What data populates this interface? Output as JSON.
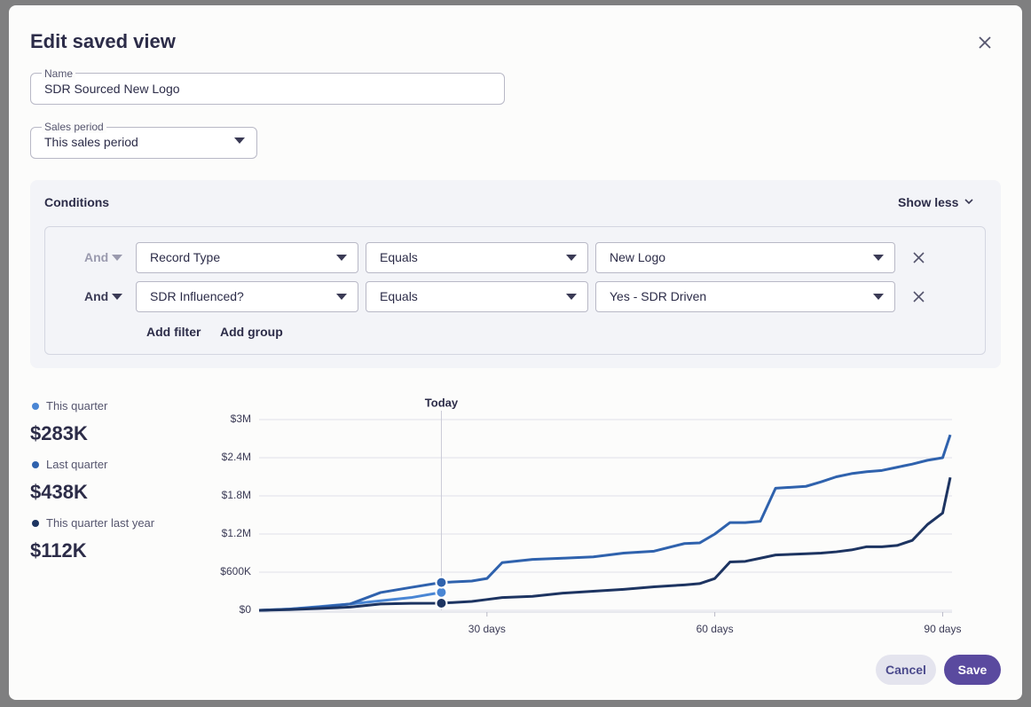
{
  "modal": {
    "title": "Edit saved view",
    "name_field": {
      "label": "Name",
      "value": "SDR Sourced New Logo"
    },
    "period_field": {
      "label": "Sales period",
      "value": "This sales period"
    },
    "conditions": {
      "title": "Conditions",
      "toggle": "Show less",
      "rows": [
        {
          "conjunction": "And",
          "field": "Record Type",
          "operator": "Equals",
          "value": "New Logo"
        },
        {
          "conjunction": "And",
          "field": "SDR Influenced?",
          "operator": "Equals",
          "value": "Yes - SDR Driven"
        }
      ],
      "add_filter": "Add filter",
      "add_group": "Add group"
    },
    "cancel": "Cancel",
    "save": "Save"
  },
  "chart_data": {
    "type": "line",
    "today": {
      "x": 24,
      "label": "Today"
    },
    "x": [
      0,
      4,
      8,
      12,
      16,
      20,
      24,
      28,
      30,
      32,
      36,
      40,
      44,
      48,
      52,
      56,
      58,
      60,
      62,
      64,
      66,
      68,
      72,
      74,
      76,
      78,
      80,
      82,
      84,
      86,
      88,
      90,
      91
    ],
    "xlim": [
      0,
      91
    ],
    "xticks": [
      {
        "value": 30,
        "label": "30 days"
      },
      {
        "value": 60,
        "label": "60 days"
      },
      {
        "value": 90,
        "label": "90 days"
      }
    ],
    "ylim": [
      0,
      3000000
    ],
    "yticks": [
      {
        "value": 0,
        "label": "$0"
      },
      {
        "value": 600000,
        "label": "$600K"
      },
      {
        "value": 1200000,
        "label": "$1.2M"
      },
      {
        "value": 1800000,
        "label": "$1.8M"
      },
      {
        "value": 2400000,
        "label": "$2.4M"
      },
      {
        "value": 3000000,
        "label": "$3M"
      }
    ],
    "grid": true,
    "series": [
      {
        "name": "This quarter",
        "total": "$283K",
        "color": "#4a86d4",
        "values": [
          0,
          20000,
          60000,
          100000,
          150000,
          200000,
          283000,
          null,
          null,
          null,
          null,
          null,
          null,
          null,
          null,
          null,
          null,
          null,
          null,
          null,
          null,
          null,
          null,
          null,
          null,
          null,
          null,
          null,
          null,
          null,
          null,
          null,
          null
        ]
      },
      {
        "name": "Last quarter",
        "total": "$438K",
        "color": "#2f62ad",
        "values": [
          0,
          20000,
          50000,
          100000,
          280000,
          360000,
          438000,
          460000,
          500000,
          750000,
          800000,
          820000,
          840000,
          900000,
          930000,
          1050000,
          1060000,
          1200000,
          1380000,
          1380000,
          1400000,
          1920000,
          1950000,
          2020000,
          2100000,
          2150000,
          2180000,
          2200000,
          2250000,
          2300000,
          2360000,
          2400000,
          2760000
        ]
      },
      {
        "name": "This quarter last year",
        "total": "$112K",
        "color": "#1d3461",
        "values": [
          0,
          10000,
          30000,
          50000,
          100000,
          110000,
          112000,
          140000,
          170000,
          200000,
          220000,
          270000,
          300000,
          330000,
          370000,
          400000,
          420000,
          500000,
          760000,
          770000,
          820000,
          870000,
          890000,
          900000,
          920000,
          950000,
          1000000,
          1000000,
          1020000,
          1100000,
          1350000,
          1530000,
          2090000
        ]
      }
    ]
  }
}
